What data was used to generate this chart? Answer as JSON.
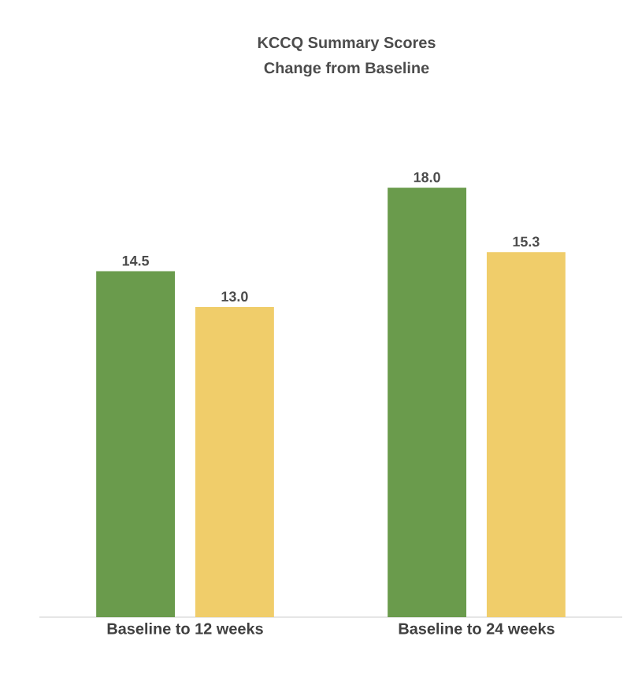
{
  "chart_data": {
    "type": "bar",
    "title": "KCCQ Summary Scores",
    "subtitle": "Change from Baseline",
    "categories": [
      "Baseline to 12 weeks",
      "Baseline to 24 weeks"
    ],
    "series": [
      {
        "color": "#6a9b4c",
        "values": [
          14.5,
          18.0
        ],
        "value_labels": [
          "14.5",
          "18.0"
        ]
      },
      {
        "color": "#f0cd6a",
        "values": [
          13.0,
          15.3
        ],
        "value_labels": [
          "13.0",
          "15.3"
        ]
      }
    ]
  }
}
